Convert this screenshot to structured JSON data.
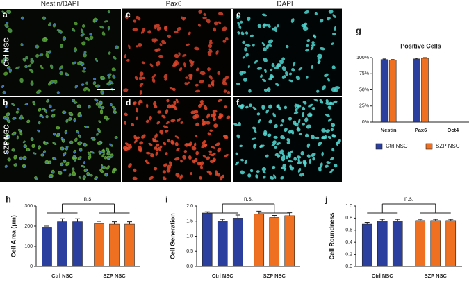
{
  "images": {
    "headers": [
      "Nestin/DAPI",
      "Pax6",
      "DAPI"
    ],
    "panel_letters": [
      "a",
      "b",
      "c",
      "d",
      "e",
      "f"
    ],
    "row_labels": [
      "Ctrl NSC",
      "SZP NSC"
    ]
  },
  "chart_data": [
    {
      "type": "bar",
      "panel": "g",
      "title": "Positive Cells",
      "categories": [
        "Nestin",
        "Pax6",
        "Oct4"
      ],
      "series": [
        {
          "name": "Ctrl NSC",
          "color": "#2b3f9e",
          "values": [
            97,
            98,
            0
          ],
          "errors": [
            1,
            1,
            0
          ]
        },
        {
          "name": "SZP NSC",
          "color": "#f07021",
          "values": [
            96,
            99,
            0
          ],
          "errors": [
            1,
            1,
            0
          ]
        }
      ],
      "ylim": [
        0,
        100
      ],
      "yticks": [
        {
          "value": 0,
          "label": "0%"
        },
        {
          "value": 25,
          "label": "25%"
        },
        {
          "value": 50,
          "label": "50%"
        },
        {
          "value": 75,
          "label": "75%"
        },
        {
          "value": 100,
          "label": "100%"
        }
      ],
      "legend": "bottom"
    },
    {
      "type": "bar_groups",
      "panel": "h",
      "ylabel": "Cell Area (μm)",
      "annotation": "n.s.",
      "series": [
        {
          "name": "Ctrl NSC",
          "color": "#2b3f9e",
          "values": [
            195,
            222,
            222
          ],
          "errors": [
            5,
            15,
            15
          ]
        },
        {
          "name": "SZP NSC",
          "color": "#f07021",
          "values": [
            212,
            210,
            210
          ],
          "errors": [
            12,
            12,
            12
          ]
        }
      ],
      "ylim": [
        0,
        300
      ],
      "yticks": [
        0,
        100,
        200,
        300
      ]
    },
    {
      "type": "bar_groups",
      "panel": "i",
      "ylabel": "Cell Generation",
      "annotation": "n.s.",
      "series": [
        {
          "name": "Ctrl NSC",
          "color": "#2b3f9e",
          "values": [
            1.77,
            1.5,
            1.6
          ],
          "errors": [
            0.04,
            0.06,
            0.1
          ]
        },
        {
          "name": "SZP NSC",
          "color": "#f07021",
          "values": [
            1.73,
            1.62,
            1.68
          ],
          "errors": [
            0.1,
            0.07,
            0.1
          ]
        }
      ],
      "ylim": [
        0,
        2
      ],
      "yticks": [
        {
          "value": 0,
          "label": "0.0"
        },
        {
          "value": 0.5,
          "label": "0.5"
        },
        {
          "value": 1,
          "label": "1.0"
        },
        {
          "value": 1.5,
          "label": "1.5"
        },
        {
          "value": 2,
          "label": "2.0"
        }
      ]
    },
    {
      "type": "bar_groups",
      "panel": "j",
      "ylabel": "Cell Roundness",
      "annotation": "n.s.",
      "series": [
        {
          "name": "Ctrl NSC",
          "color": "#2b3f9e",
          "values": [
            0.7,
            0.75,
            0.75
          ],
          "errors": [
            0.03,
            0.03,
            0.03
          ]
        },
        {
          "name": "SZP NSC",
          "color": "#f07021",
          "values": [
            0.76,
            0.76,
            0.76
          ],
          "errors": [
            0.02,
            0.02,
            0.02
          ]
        }
      ],
      "ylim": [
        0,
        1
      ],
      "yticks": [
        {
          "value": 0,
          "label": "0.0"
        },
        {
          "value": 0.2,
          "label": "0.2"
        },
        {
          "value": 0.4,
          "label": "0.4"
        },
        {
          "value": 0.6,
          "label": "0.6"
        },
        {
          "value": 0.8,
          "label": "0.8"
        },
        {
          "value": 1,
          "label": "1.0"
        }
      ]
    }
  ]
}
